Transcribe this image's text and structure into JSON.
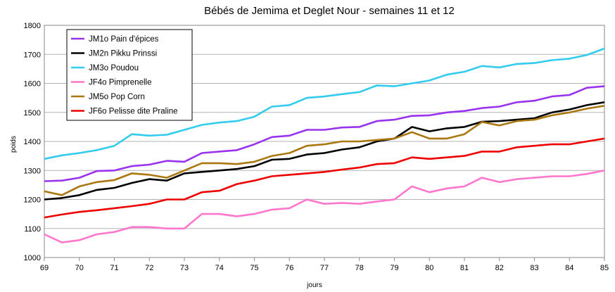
{
  "chart_data": {
    "type": "line",
    "title": "Bébés de Jemima et Deglet Nour - semaines 11 et 12",
    "xlabel": "jours",
    "ylabel": "poids",
    "xlim": [
      69,
      85
    ],
    "ylim": [
      1000,
      1800
    ],
    "x_ticks": [
      "69",
      "70",
      "71",
      "72",
      "73",
      "74",
      "75",
      "76",
      "77",
      "78",
      "79",
      "80",
      "81",
      "82",
      "83",
      "84",
      "85"
    ],
    "y_ticks": [
      "1000",
      "1100",
      "1200",
      "1300",
      "1400",
      "1500",
      "1600",
      "1700",
      "1800"
    ],
    "grid": true,
    "legend_position": "top-left",
    "x": [
      69,
      69.5,
      70,
      70.5,
      71,
      71.5,
      72,
      72.5,
      73,
      73.5,
      74,
      74.5,
      75,
      75.5,
      76,
      76.5,
      77,
      77.5,
      78,
      78.5,
      79,
      79.5,
      80,
      80.5,
      81,
      81.5,
      82,
      82.5,
      83,
      83.5,
      84,
      84.5,
      85
    ],
    "series": [
      {
        "name": "JM1o Pain d'épices",
        "color": "#9933ee",
        "values": [
          1263,
          1265,
          1275,
          1298,
          1300,
          1315,
          1320,
          1333,
          1330,
          1360,
          1365,
          1370,
          1390,
          1415,
          1420,
          1440,
          1440,
          1448,
          1450,
          1470,
          1475,
          1488,
          1490,
          1500,
          1505,
          1515,
          1520,
          1535,
          1540,
          1555,
          1560,
          1585,
          1590
        ]
      },
      {
        "name": "JM2n Pikku Prinssi",
        "color": "#000000",
        "values": [
          1200,
          1205,
          1215,
          1233,
          1240,
          1257,
          1270,
          1265,
          1290,
          1295,
          1300,
          1305,
          1315,
          1337,
          1340,
          1355,
          1360,
          1372,
          1380,
          1400,
          1410,
          1450,
          1435,
          1445,
          1450,
          1468,
          1470,
          1475,
          1480,
          1500,
          1510,
          1525,
          1535
        ]
      },
      {
        "name": "JM3o Poudou",
        "color": "#33ccee",
        "values": [
          1340,
          1352,
          1360,
          1370,
          1385,
          1425,
          1420,
          1423,
          1440,
          1457,
          1465,
          1470,
          1485,
          1520,
          1525,
          1550,
          1555,
          1563,
          1570,
          1593,
          1590,
          1600,
          1610,
          1630,
          1640,
          1660,
          1655,
          1667,
          1670,
          1680,
          1685,
          1698,
          1720
        ]
      },
      {
        "name": "JF4o Pimprenelle",
        "color": "#ff77cc",
        "values": [
          1080,
          1052,
          1060,
          1080,
          1088,
          1105,
          1105,
          1100,
          1100,
          1150,
          1150,
          1142,
          1150,
          1165,
          1170,
          1200,
          1185,
          1188,
          1185,
          1193,
          1200,
          1245,
          1225,
          1238,
          1245,
          1275,
          1260,
          1270,
          1275,
          1280,
          1280,
          1288,
          1300
        ]
      },
      {
        "name": "JM5o Pop Corn",
        "color": "#aa7711",
        "values": [
          1228,
          1215,
          1245,
          1260,
          1267,
          1290,
          1285,
          1275,
          1300,
          1325,
          1325,
          1322,
          1330,
          1350,
          1360,
          1385,
          1390,
          1400,
          1400,
          1405,
          1410,
          1432,
          1410,
          1410,
          1425,
          1467,
          1455,
          1470,
          1475,
          1490,
          1500,
          1513,
          1523
        ]
      },
      {
        "name": "JF6o Pelisse dite Praline",
        "color": "#ee0000",
        "values": [
          1138,
          1148,
          1157,
          1163,
          1170,
          1177,
          1185,
          1200,
          1200,
          1225,
          1230,
          1253,
          1265,
          1280,
          1285,
          1290,
          1295,
          1303,
          1310,
          1322,
          1325,
          1345,
          1340,
          1345,
          1350,
          1365,
          1365,
          1380,
          1385,
          1390,
          1390,
          1400,
          1410
        ]
      }
    ]
  }
}
